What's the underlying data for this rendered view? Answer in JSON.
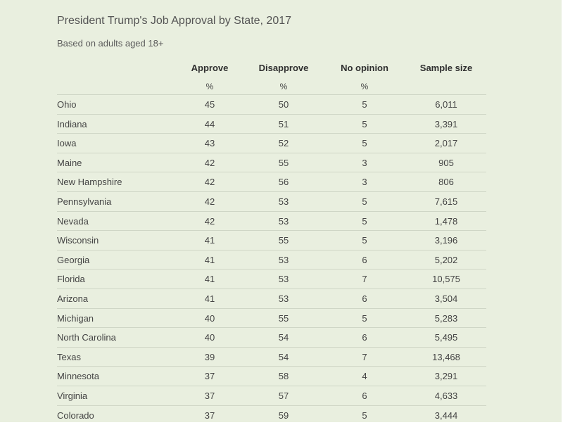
{
  "title": "President Trump's Job Approval by State, 2017",
  "subtitle": "Based on adults aged 18+",
  "colors": {
    "background": "#e9efdf",
    "divider": "#cfd6c6",
    "text": "#444444"
  },
  "chart_data": {
    "type": "table",
    "title": "President Trump's Job Approval by State, 2017",
    "subtitle": "Based on adults aged 18+",
    "columns": [
      {
        "key": "state",
        "label": "",
        "unit": ""
      },
      {
        "key": "approve",
        "label": "Approve",
        "unit": "%"
      },
      {
        "key": "disapprove",
        "label": "Disapprove",
        "unit": "%"
      },
      {
        "key": "no_opinion",
        "label": "No opinion",
        "unit": "%"
      },
      {
        "key": "sample_size",
        "label": "Sample size",
        "unit": ""
      }
    ],
    "rows": [
      {
        "state": "Ohio",
        "approve": "45",
        "disapprove": "50",
        "no_opinion": "5",
        "sample_size": "6,011"
      },
      {
        "state": "Indiana",
        "approve": "44",
        "disapprove": "51",
        "no_opinion": "5",
        "sample_size": "3,391"
      },
      {
        "state": "Iowa",
        "approve": "43",
        "disapprove": "52",
        "no_opinion": "5",
        "sample_size": "2,017"
      },
      {
        "state": "Maine",
        "approve": "42",
        "disapprove": "55",
        "no_opinion": "3",
        "sample_size": "905"
      },
      {
        "state": "New Hampshire",
        "approve": "42",
        "disapprove": "56",
        "no_opinion": "3",
        "sample_size": "806"
      },
      {
        "state": "Pennsylvania",
        "approve": "42",
        "disapprove": "53",
        "no_opinion": "5",
        "sample_size": "7,615"
      },
      {
        "state": "Nevada",
        "approve": "42",
        "disapprove": "53",
        "no_opinion": "5",
        "sample_size": "1,478"
      },
      {
        "state": "Wisconsin",
        "approve": "41",
        "disapprove": "55",
        "no_opinion": "5",
        "sample_size": "3,196"
      },
      {
        "state": "Georgia",
        "approve": "41",
        "disapprove": "53",
        "no_opinion": "6",
        "sample_size": "5,202"
      },
      {
        "state": "Florida",
        "approve": "41",
        "disapprove": "53",
        "no_opinion": "7",
        "sample_size": "10,575"
      },
      {
        "state": "Arizona",
        "approve": "41",
        "disapprove": "53",
        "no_opinion": "6",
        "sample_size": "3,504"
      },
      {
        "state": "Michigan",
        "approve": "40",
        "disapprove": "55",
        "no_opinion": "5",
        "sample_size": "5,283"
      },
      {
        "state": "North Carolina",
        "approve": "40",
        "disapprove": "54",
        "no_opinion": "6",
        "sample_size": "5,495"
      },
      {
        "state": "Texas",
        "approve": "39",
        "disapprove": "54",
        "no_opinion": "7",
        "sample_size": "13,468"
      },
      {
        "state": "Minnesota",
        "approve": "37",
        "disapprove": "58",
        "no_opinion": "4",
        "sample_size": "3,291"
      },
      {
        "state": "Virginia",
        "approve": "37",
        "disapprove": "57",
        "no_opinion": "6",
        "sample_size": "4,633"
      },
      {
        "state": "Colorado",
        "approve": "37",
        "disapprove": "59",
        "no_opinion": "5",
        "sample_size": "3,444"
      }
    ]
  }
}
